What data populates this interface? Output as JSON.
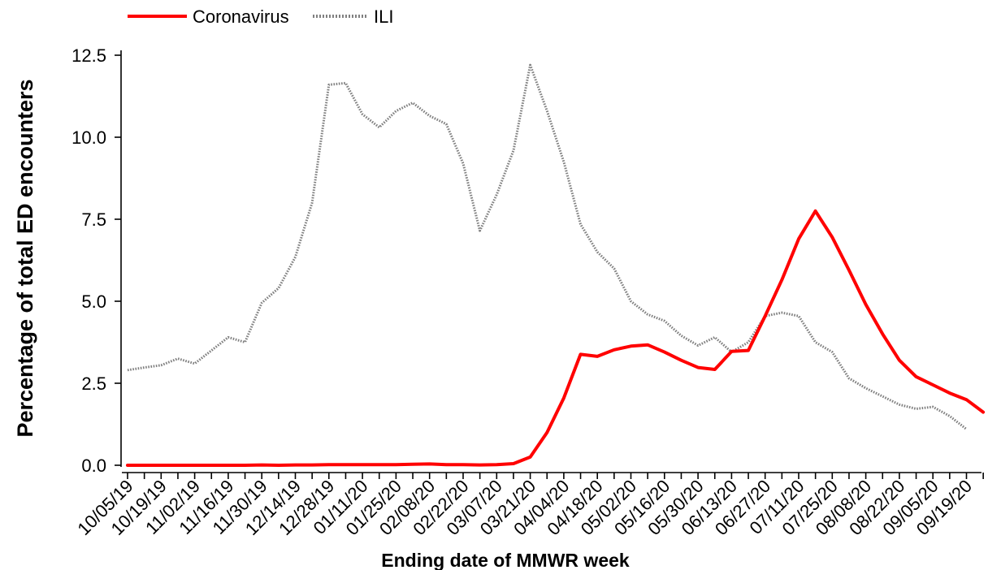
{
  "chart_data": {
    "type": "line",
    "xlabel": "Ending date of MMWR week",
    "ylabel": "Percentage of total ED encounters",
    "ylim": [
      0,
      12.5
    ],
    "yticks": [
      0.0,
      2.5,
      5.0,
      7.5,
      10.0,
      12.5
    ],
    "ytick_labels": [
      "0.0",
      "2.5",
      "5.0",
      "7.5",
      "10.0",
      "12.5"
    ],
    "grid": false,
    "legend_position": "top-left",
    "x_tick_labels": [
      "10/05/19",
      "10/19/19",
      "11/02/19",
      "11/16/19",
      "11/30/19",
      "12/14/19",
      "12/28/19",
      "01/11/20",
      "01/25/20",
      "02/08/20",
      "02/22/20",
      "03/07/20",
      "03/21/20",
      "04/04/20",
      "04/18/20",
      "05/02/20",
      "05/16/20",
      "05/30/20",
      "06/13/20",
      "06/27/20",
      "07/11/20",
      "07/25/20",
      "08/08/20",
      "08/22/20",
      "09/05/20",
      "09/19/20"
    ],
    "x": [
      "10/05/19",
      "10/12/19",
      "10/19/19",
      "10/26/19",
      "11/02/19",
      "11/09/19",
      "11/16/19",
      "11/23/19",
      "11/30/19",
      "12/07/19",
      "12/14/19",
      "12/21/19",
      "12/28/19",
      "01/04/20",
      "01/11/20",
      "01/18/20",
      "01/25/20",
      "02/01/20",
      "02/08/20",
      "02/15/20",
      "02/22/20",
      "02/29/20",
      "03/07/20",
      "03/14/20",
      "03/21/20",
      "03/28/20",
      "04/04/20",
      "04/11/20",
      "04/18/20",
      "04/25/20",
      "05/02/20",
      "05/09/20",
      "05/16/20",
      "05/23/20",
      "05/30/20",
      "06/06/20",
      "06/13/20",
      "06/20/20",
      "06/27/20",
      "07/04/20",
      "07/11/20",
      "07/18/20",
      "07/25/20",
      "08/01/20",
      "08/08/20",
      "08/15/20",
      "08/22/20",
      "08/29/20",
      "09/05/20",
      "09/12/20",
      "09/19/20",
      "09/26/20"
    ],
    "series": [
      {
        "name": "Coronavirus",
        "color": "#ff0000",
        "style": "solid",
        "values": [
          0.0,
          0.0,
          0.0,
          0.0,
          0.0,
          0.0,
          0.0,
          0.0,
          0.01,
          0.0,
          0.01,
          0.01,
          0.02,
          0.02,
          0.02,
          0.02,
          0.02,
          0.03,
          0.04,
          0.02,
          0.02,
          0.01,
          0.02,
          0.05,
          0.25,
          1.0,
          2.05,
          3.38,
          3.32,
          3.52,
          3.63,
          3.67,
          3.45,
          3.2,
          2.98,
          2.92,
          3.47,
          3.5,
          4.55,
          5.65,
          6.9,
          7.75,
          6.95,
          5.95,
          4.9,
          4.0,
          3.2,
          2.7,
          2.45,
          2.2,
          2.0,
          1.62
        ]
      },
      {
        "name": "ILI",
        "color": "#808080",
        "style": "dotted",
        "values": [
          2.9,
          2.98,
          3.05,
          3.25,
          3.1,
          3.5,
          3.9,
          3.75,
          4.95,
          5.4,
          6.35,
          8.0,
          11.6,
          11.65,
          10.7,
          10.3,
          10.8,
          11.05,
          10.65,
          10.4,
          9.2,
          7.15,
          8.25,
          9.6,
          12.2,
          10.8,
          9.25,
          7.35,
          6.5,
          6.0,
          5.0,
          4.6,
          4.4,
          3.95,
          3.65,
          3.9,
          3.45,
          3.75,
          4.55,
          4.65,
          4.55,
          3.75,
          3.45,
          2.65,
          2.35,
          2.1,
          1.85,
          1.72,
          1.78,
          1.5,
          1.1,
          null
        ]
      }
    ]
  }
}
